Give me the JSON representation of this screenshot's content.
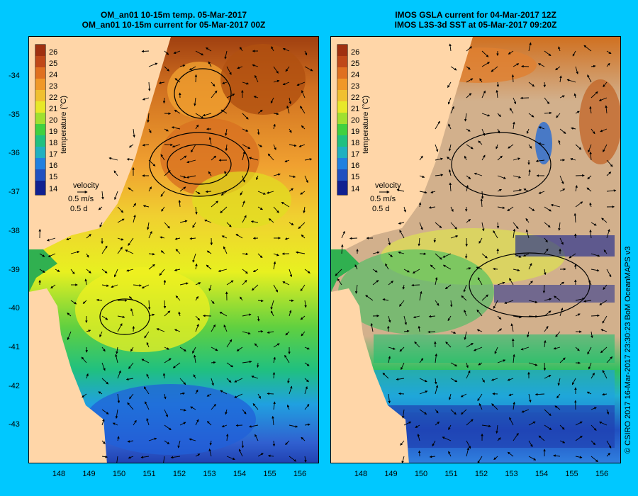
{
  "panels": [
    {
      "title_line1": "OM_an01 10-15m temp. 05-Mar-2017",
      "title_line2": "OM_an01 10-15m current for 05-Mar-2017 00Z",
      "colorbar_label": "temperature (°C)",
      "velocity_label": "velocity",
      "velocity_scale": "0.5 m/s",
      "velocity_time": "0.5 d"
    },
    {
      "title_line1": "IMOS GSLA current for 04-Mar-2017 12Z",
      "title_line2": "IMOS L3S-3d SST at 05-Mar-2017 09:20Z",
      "colorbar_label": "temperature (°C)",
      "velocity_label": "velocity",
      "velocity_scale": "0.5 m/s",
      "velocity_time": "0.5 d"
    }
  ],
  "colorbar_ticks": [
    "26",
    "25",
    "24",
    "23",
    "22",
    "21",
    "20",
    "19",
    "18",
    "17",
    "16",
    "15",
    "14"
  ],
  "lat_ticks": [
    "-34",
    "-35",
    "-36",
    "-37",
    "-38",
    "-39",
    "-40",
    "-41",
    "-42",
    "-43"
  ],
  "lon_ticks": [
    "148",
    "149",
    "150",
    "151",
    "152",
    "153",
    "154",
    "155",
    "156"
  ],
  "credit": "© CSIRO 2017   16-Mar-2017 23:30:23 BoM OceanMAPS v3",
  "colors": {
    "background": "#00c8ff",
    "land": "#ffd6a8",
    "nodata": "#d2b08c"
  }
}
